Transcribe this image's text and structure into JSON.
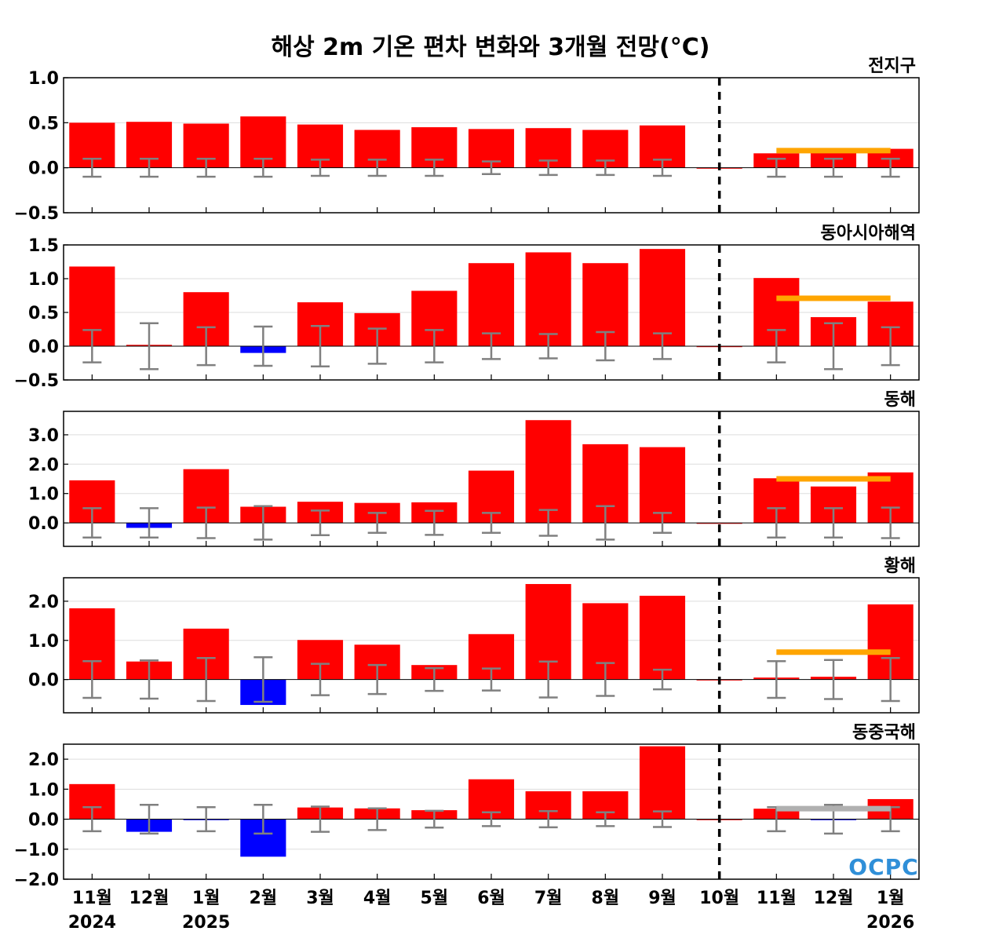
{
  "title": "해상 2m 기온 편차 변화와 3개월 전망(°C)",
  "logo_text": "OCPC",
  "colors": {
    "positive": "#ff0000",
    "negative": "#0000ff",
    "errorbar": "#808080",
    "forecast_line": "#ffa500",
    "forecast_line_neutral": "#b0b0b0",
    "divider": "#000000"
  },
  "chart_data": [
    {
      "type": "bar",
      "title": "전지구",
      "categories": [
        "11월",
        "12월",
        "1월",
        "2월",
        "3월",
        "4월",
        "5월",
        "6월",
        "7월",
        "8월",
        "9월",
        "10월",
        "11월",
        "12월",
        "1월"
      ],
      "values": [
        0.5,
        0.51,
        0.49,
        0.57,
        0.48,
        0.42,
        0.45,
        0.43,
        0.44,
        0.42,
        0.47,
        0.0,
        0.16,
        0.19,
        0.21
      ],
      "errorbar": [
        0.1,
        0.1,
        0.1,
        0.1,
        0.09,
        0.09,
        0.09,
        0.07,
        0.08,
        0.08,
        0.09,
        null,
        0.1,
        0.1,
        0.1
      ],
      "forecast_mean": 0.19,
      "ylim": [
        -0.5,
        1.0
      ],
      "yticks": [
        -0.5,
        0.0,
        0.5,
        1.0
      ],
      "ytick_labels": [
        "−0.5",
        "0.0",
        "0.5",
        "1.0"
      ]
    },
    {
      "type": "bar",
      "title": "동아시아해역",
      "categories": [
        "11월",
        "12월",
        "1월",
        "2월",
        "3월",
        "4월",
        "5월",
        "6월",
        "7월",
        "8월",
        "9월",
        "10월",
        "11월",
        "12월",
        "1월"
      ],
      "values": [
        1.18,
        0.02,
        0.8,
        -0.1,
        0.65,
        0.49,
        0.82,
        1.23,
        1.39,
        1.23,
        1.44,
        0.0,
        1.01,
        0.43,
        0.66
      ],
      "errorbar": [
        0.24,
        0.34,
        0.28,
        0.29,
        0.3,
        0.26,
        0.24,
        0.19,
        0.18,
        0.21,
        0.19,
        null,
        0.24,
        0.34,
        0.28
      ],
      "forecast_mean": 0.71,
      "ylim": [
        -0.5,
        1.5
      ],
      "yticks": [
        -0.5,
        0.0,
        0.5,
        1.0,
        1.5
      ],
      "ytick_labels": [
        "−0.5",
        "0.0",
        "0.5",
        "1.0",
        "1.5"
      ]
    },
    {
      "type": "bar",
      "title": "동해",
      "categories": [
        "11월",
        "12월",
        "1월",
        "2월",
        "3월",
        "4월",
        "5월",
        "6월",
        "7월",
        "8월",
        "9월",
        "10월",
        "11월",
        "12월",
        "1월"
      ],
      "values": [
        1.45,
        -0.17,
        1.83,
        0.55,
        0.72,
        0.68,
        0.7,
        1.78,
        3.5,
        2.68,
        2.58,
        0.0,
        1.52,
        1.24,
        1.72
      ],
      "errorbar": [
        0.5,
        0.5,
        0.52,
        0.57,
        0.42,
        0.34,
        0.41,
        0.34,
        0.44,
        0.57,
        0.34,
        null,
        0.5,
        0.5,
        0.52
      ],
      "forecast_mean": 1.5,
      "ylim": [
        -0.8,
        3.8
      ],
      "yticks": [
        0.0,
        1.0,
        2.0,
        3.0
      ],
      "ytick_labels": [
        "0.0",
        "1.0",
        "2.0",
        "3.0"
      ]
    },
    {
      "type": "bar",
      "title": "황해",
      "categories": [
        "11월",
        "12월",
        "1월",
        "2월",
        "3월",
        "4월",
        "5월",
        "6월",
        "7월",
        "8월",
        "9월",
        "10월",
        "11월",
        "12월",
        "1월"
      ],
      "values": [
        1.82,
        0.46,
        1.3,
        -0.65,
        1.01,
        0.89,
        0.37,
        1.16,
        2.44,
        1.95,
        2.14,
        0.0,
        0.05,
        0.07,
        1.92
      ],
      "errorbar": [
        0.47,
        0.49,
        0.55,
        0.57,
        0.4,
        0.37,
        0.29,
        0.28,
        0.46,
        0.42,
        0.25,
        null,
        0.47,
        0.5,
        0.55
      ],
      "forecast_mean": 0.7,
      "ylim": [
        -0.85,
        2.6
      ],
      "yticks": [
        0.0,
        1.0,
        2.0
      ],
      "ytick_labels": [
        "0.0",
        "1.0",
        "2.0"
      ]
    },
    {
      "type": "bar",
      "title": "동중국해",
      "categories": [
        "11월",
        "12월",
        "1월",
        "2월",
        "3월",
        "4월",
        "5월",
        "6월",
        "7월",
        "8월",
        "9월",
        "10월",
        "11월",
        "12월",
        "1월"
      ],
      "values": [
        1.17,
        -0.42,
        -0.02,
        -1.25,
        0.39,
        0.36,
        0.3,
        1.33,
        0.93,
        0.93,
        2.43,
        0.0,
        0.35,
        -0.02,
        0.67
      ],
      "errorbar": [
        0.4,
        0.48,
        0.4,
        0.48,
        0.42,
        0.36,
        0.28,
        0.23,
        0.27,
        0.23,
        0.26,
        null,
        0.4,
        0.48,
        0.4
      ],
      "forecast_mean": 0.35,
      "forecast_neutral": true,
      "ylim": [
        -2.0,
        2.5
      ],
      "yticks": [
        -2.0,
        -1.0,
        0.0,
        1.0,
        2.0
      ],
      "ytick_labels": [
        "−2.0",
        "−1.0",
        "0.0",
        "1.0",
        "2.0"
      ]
    }
  ],
  "x_labels": [
    "11월",
    "12월",
    "1월",
    "2월",
    "3월",
    "4월",
    "5월",
    "6월",
    "7월",
    "8월",
    "9월",
    "10월",
    "11월",
    "12월",
    "1월"
  ],
  "year_labels": [
    {
      "index": 0,
      "text": "2024"
    },
    {
      "index": 2,
      "text": "2025"
    },
    {
      "index": 14,
      "text": "2026"
    }
  ],
  "forecast_months": [
    12,
    13,
    14
  ],
  "divider_index": 11
}
